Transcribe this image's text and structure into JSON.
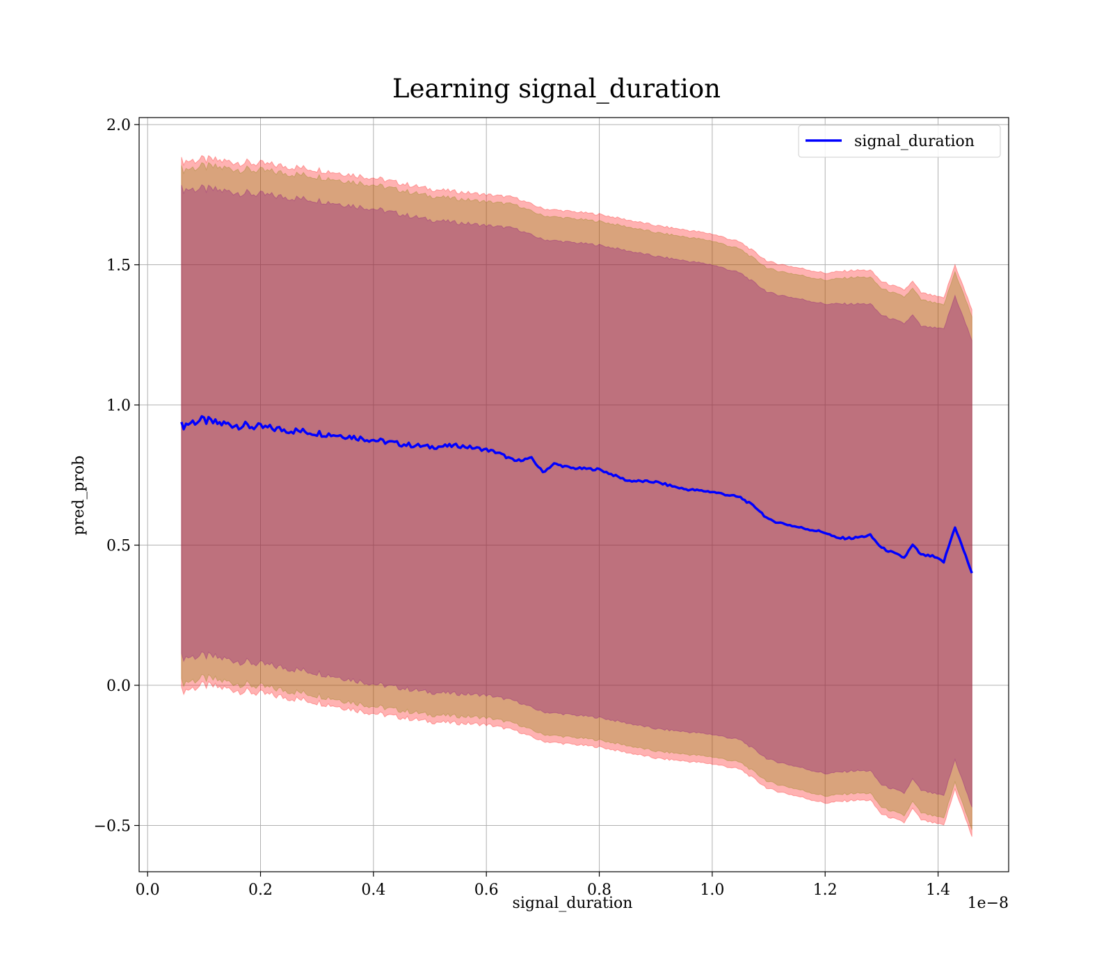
{
  "chart_data": {
    "type": "line",
    "title": "Learning signal_duration",
    "xlabel": "signal_duration",
    "ylabel": "pred_prob",
    "x_offset_label": "1e−8",
    "xlim": [
      -0.015,
      1.525
    ],
    "ylim": [
      -0.665,
      2.025
    ],
    "xticks": [
      0.0,
      0.2,
      0.4,
      0.6,
      0.8,
      1.0,
      1.2,
      1.4
    ],
    "xtick_labels": [
      "0.0",
      "0.2",
      "0.4",
      "0.6",
      "0.8",
      "1.0",
      "1.2",
      "1.4"
    ],
    "yticks": [
      -0.5,
      0.0,
      0.5,
      1.0,
      1.5,
      2.0
    ],
    "ytick_labels": [
      "−0.5",
      "0.0",
      "0.5",
      "1.0",
      "1.5",
      "2.0"
    ],
    "grid": true,
    "legend": {
      "position": "top-right",
      "entries": [
        "signal_duration"
      ]
    },
    "series": [
      {
        "name": "signal_duration",
        "color": "#0000ff",
        "x": [
          0.06,
          0.08,
          0.1,
          0.12,
          0.15,
          0.2,
          0.25,
          0.3,
          0.35,
          0.4,
          0.45,
          0.5,
          0.55,
          0.6,
          0.62,
          0.65,
          0.68,
          0.7,
          0.72,
          0.75,
          0.8,
          0.85,
          0.9,
          0.95,
          1.0,
          1.05,
          1.08,
          1.1,
          1.15,
          1.2,
          1.22,
          1.25,
          1.28,
          1.3,
          1.34,
          1.355,
          1.37,
          1.39,
          1.41,
          1.43,
          1.46
        ],
        "y": [
          0.925,
          0.94,
          0.945,
          0.935,
          0.93,
          0.92,
          0.91,
          0.9,
          0.89,
          0.875,
          0.86,
          0.85,
          0.855,
          0.84,
          0.83,
          0.8,
          0.81,
          0.76,
          0.79,
          0.775,
          0.77,
          0.73,
          0.725,
          0.7,
          0.69,
          0.67,
          0.63,
          0.59,
          0.565,
          0.545,
          0.525,
          0.525,
          0.535,
          0.49,
          0.455,
          0.5,
          0.465,
          0.46,
          0.44,
          0.565,
          0.4
        ]
      }
    ],
    "bands": [
      {
        "color": "#ff0000",
        "x": [
          0.06,
          0.1,
          0.2,
          0.3,
          0.4,
          0.5,
          0.6,
          0.65,
          0.7,
          0.8,
          0.9,
          1.0,
          1.05,
          1.1,
          1.2,
          1.25,
          1.28,
          1.3,
          1.34,
          1.355,
          1.37,
          1.41,
          1.43,
          1.46
        ],
        "upper": [
          1.87,
          1.875,
          1.86,
          1.84,
          1.81,
          1.77,
          1.75,
          1.74,
          1.7,
          1.68,
          1.64,
          1.61,
          1.58,
          1.51,
          1.47,
          1.48,
          1.48,
          1.44,
          1.41,
          1.44,
          1.4,
          1.38,
          1.5,
          1.34
        ],
        "lower": [
          -0.02,
          0.0,
          -0.03,
          -0.06,
          -0.1,
          -0.13,
          -0.14,
          -0.16,
          -0.2,
          -0.22,
          -0.26,
          -0.28,
          -0.3,
          -0.37,
          -0.42,
          -0.41,
          -0.41,
          -0.46,
          -0.49,
          -0.44,
          -0.48,
          -0.5,
          -0.37,
          -0.54
        ]
      },
      {
        "color": "#808000",
        "x": [
          0.06,
          0.1,
          0.2,
          0.3,
          0.4,
          0.5,
          0.6,
          0.65,
          0.7,
          0.8,
          0.9,
          1.0,
          1.05,
          1.1,
          1.2,
          1.25,
          1.28,
          1.3,
          1.34,
          1.355,
          1.37,
          1.41,
          1.43,
          1.46
        ],
        "upper": [
          1.84,
          1.85,
          1.835,
          1.815,
          1.785,
          1.745,
          1.725,
          1.715,
          1.675,
          1.655,
          1.615,
          1.585,
          1.555,
          1.485,
          1.445,
          1.455,
          1.455,
          1.415,
          1.385,
          1.415,
          1.375,
          1.355,
          1.475,
          1.315
        ],
        "lower": [
          0.01,
          0.025,
          -0.005,
          -0.035,
          -0.075,
          -0.105,
          -0.115,
          -0.135,
          -0.175,
          -0.195,
          -0.235,
          -0.255,
          -0.275,
          -0.345,
          -0.395,
          -0.385,
          -0.385,
          -0.435,
          -0.465,
          -0.415,
          -0.455,
          -0.475,
          -0.345,
          -0.515
        ]
      },
      {
        "color": "#800080",
        "x": [
          0.06,
          0.1,
          0.2,
          0.3,
          0.4,
          0.5,
          0.6,
          0.65,
          0.7,
          0.8,
          0.9,
          1.0,
          1.05,
          1.1,
          1.2,
          1.25,
          1.28,
          1.3,
          1.34,
          1.355,
          1.37,
          1.41,
          1.43,
          1.46
        ],
        "upper": [
          1.77,
          1.77,
          1.75,
          1.73,
          1.7,
          1.66,
          1.64,
          1.63,
          1.59,
          1.57,
          1.53,
          1.5,
          1.47,
          1.4,
          1.36,
          1.36,
          1.36,
          1.32,
          1.29,
          1.32,
          1.28,
          1.27,
          1.39,
          1.23
        ],
        "lower": [
          0.1,
          0.105,
          0.075,
          0.045,
          0.005,
          -0.025,
          -0.035,
          -0.055,
          -0.095,
          -0.115,
          -0.155,
          -0.175,
          -0.195,
          -0.265,
          -0.315,
          -0.305,
          -0.305,
          -0.355,
          -0.385,
          -0.335,
          -0.375,
          -0.395,
          -0.265,
          -0.435
        ]
      }
    ]
  }
}
